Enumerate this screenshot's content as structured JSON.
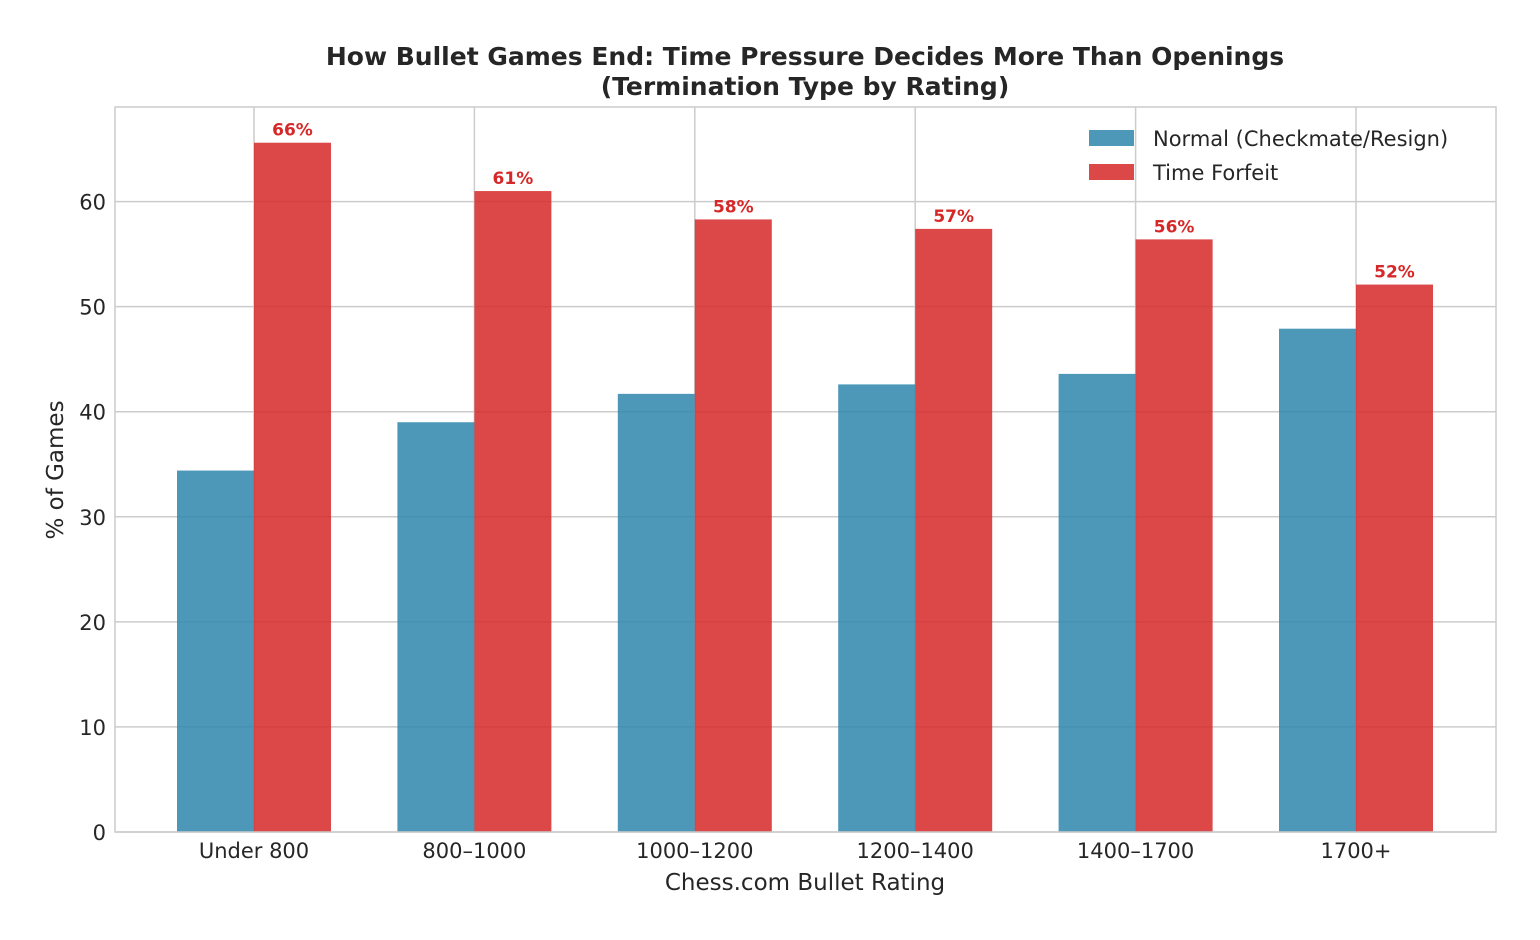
{
  "chart_data": {
    "type": "bar",
    "title_line1": "How Bullet Games End: Time Pressure Decides More Than Openings",
    "title_line2": "(Termination Type by Rating)",
    "xlabel": "Chess.com Bullet Rating",
    "ylabel": "% of Games",
    "categories": [
      "Under 800",
      "800–1000",
      "1000–1200",
      "1200–1400",
      "1400–1700",
      "1700+"
    ],
    "series": [
      {
        "name": "Normal (Checkmate/Resign)",
        "color": "#2e86ab",
        "values": [
          34.4,
          39.0,
          41.7,
          42.6,
          43.6,
          47.9
        ]
      },
      {
        "name": "Time Forfeit",
        "color": "#d62828",
        "values": [
          65.6,
          61.0,
          58.3,
          57.4,
          56.4,
          52.1
        ]
      }
    ],
    "data_labels": [
      "66%",
      "61%",
      "58%",
      "57%",
      "56%",
      "52%"
    ],
    "data_label_color": "#d62828",
    "ylim": [
      0,
      69
    ],
    "yticks": [
      "0",
      "10",
      "20",
      "30",
      "40",
      "50",
      "60"
    ],
    "ytick_values": [
      0,
      10,
      20,
      30,
      40,
      50,
      60
    ],
    "grid": true,
    "legend_position": "upper right"
  }
}
